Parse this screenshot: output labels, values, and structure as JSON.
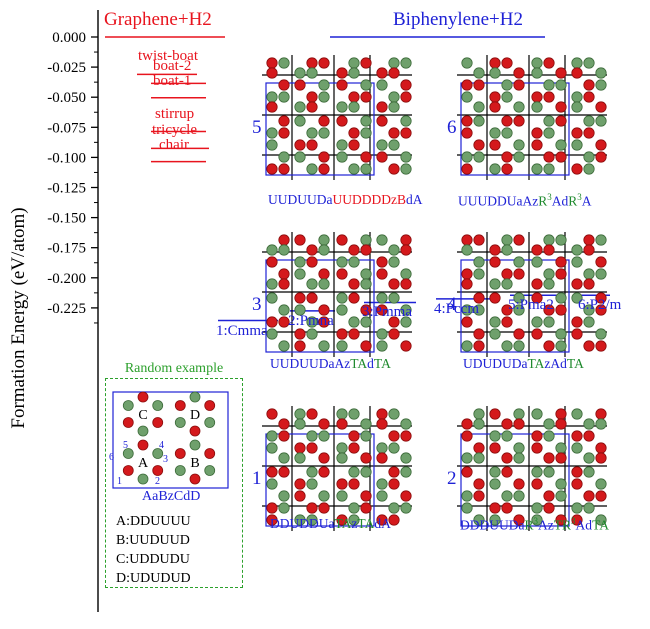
{
  "colors": {
    "graphene": "#e8141e",
    "biphenylene": "#1f22d6",
    "green": "#2ca02c",
    "carbon": "#6fa06c",
    "hydrogen": "#d4191c"
  },
  "chart_data": {
    "type": "scatter",
    "ylabel": "Formation Energy (eV/atom)",
    "ylim": [
      -0.24,
      0.005
    ],
    "yticks": [
      "0.000",
      "-0.025",
      "-0.050",
      "-0.075",
      "-0.100",
      "-0.125",
      "-0.150",
      "-0.175",
      "-0.200",
      "-0.225"
    ],
    "ytick_values": [
      0,
      -0.025,
      -0.05,
      -0.075,
      -0.1,
      -0.125,
      -0.15,
      -0.175,
      -0.2,
      -0.225
    ],
    "series": [
      {
        "name": "Graphene+H2",
        "levels": [
          {
            "label": "",
            "y": 0.0
          },
          {
            "label": "twist-boat",
            "y": -0.031
          },
          {
            "label": "boat-2",
            "y": -0.0385
          },
          {
            "label": "boat-1",
            "y": -0.0505
          },
          {
            "label": "stirrup",
            "y": -0.0785
          },
          {
            "label": "tricycle",
            "y": -0.0925
          },
          {
            "label": "chair",
            "y": -0.1035
          }
        ]
      },
      {
        "name": "Biphenylene+H2",
        "levels": [
          {
            "label": "",
            "y": 0.0
          },
          {
            "label": "1:Cmma",
            "y": -0.2355
          },
          {
            "label": "2:Pmna",
            "y": -0.2275
          },
          {
            "label": "3:Pmma",
            "y": -0.2205
          },
          {
            "label": "4:Pccm",
            "y": -0.2175
          },
          {
            "label": "5:Pma2",
            "y": -0.2145
          },
          {
            "label": "6:P2/m",
            "y": -0.2145
          }
        ]
      }
    ]
  },
  "structures": [
    {
      "num": "5",
      "caption_parts": [
        {
          "t": "UUDUUDa",
          "c": "blue"
        },
        {
          "t": "UUDDDDz",
          "c": "red"
        },
        {
          "t": "B",
          "c": "red"
        },
        {
          "t": "dA",
          "c": "blue"
        }
      ]
    },
    {
      "num": "6",
      "caption_parts": [
        {
          "t": "UUUDDUaAz",
          "c": "blue"
        },
        {
          "t": "R",
          "c": "green"
        },
        {
          "t": "3",
          "c": "green",
          "sup": true
        },
        {
          "t": "Ad",
          "c": "blue"
        },
        {
          "t": "R",
          "c": "green"
        },
        {
          "t": "3",
          "c": "green",
          "sup": true
        },
        {
          "t": "A",
          "c": "blue"
        }
      ]
    },
    {
      "num": "3",
      "caption_parts": [
        {
          "t": "UUDUUDaAz",
          "c": "blue"
        },
        {
          "t": "TA",
          "c": "green"
        },
        {
          "t": "d",
          "c": "blue"
        },
        {
          "t": "TA",
          "c": "green"
        }
      ]
    },
    {
      "num": "4",
      "caption_parts": [
        {
          "t": "UDUDUDa",
          "c": "blue"
        },
        {
          "t": "TA",
          "c": "green"
        },
        {
          "t": "zAd",
          "c": "blue"
        },
        {
          "t": "TA",
          "c": "green"
        }
      ]
    },
    {
      "num": "1",
      "caption_parts": [
        {
          "t": "DDUDDUa",
          "c": "blue"
        },
        {
          "t": "TA",
          "c": "green"
        },
        {
          "t": "z",
          "c": "blue"
        },
        {
          "t": "TA",
          "c": "green"
        },
        {
          "t": "dA",
          "c": "blue"
        }
      ]
    },
    {
      "num": "2",
      "caption_parts": [
        {
          "t": "DDDUUDa",
          "c": "blue"
        },
        {
          "t": "R",
          "c": "green"
        },
        {
          "t": "3",
          "c": "green",
          "sup": true
        },
        {
          "t": "Az",
          "c": "blue"
        },
        {
          "t": "TR",
          "c": "green"
        },
        {
          "t": "3",
          "c": "green",
          "sup": true
        },
        {
          "t": "Ad",
          "c": "blue"
        },
        {
          "t": "TA",
          "c": "green"
        }
      ]
    }
  ],
  "random_example": {
    "title": "Random example",
    "ring_labels": [
      "A",
      "B",
      "C",
      "D"
    ],
    "site_numbers": [
      "1",
      "2",
      "3",
      "4",
      "5",
      "6"
    ],
    "caption": "AaBzCdD",
    "codes": [
      "A:DDUUUU",
      "B:UUDUUD",
      "C:UDDUDU",
      "D:UDUDUD"
    ]
  }
}
